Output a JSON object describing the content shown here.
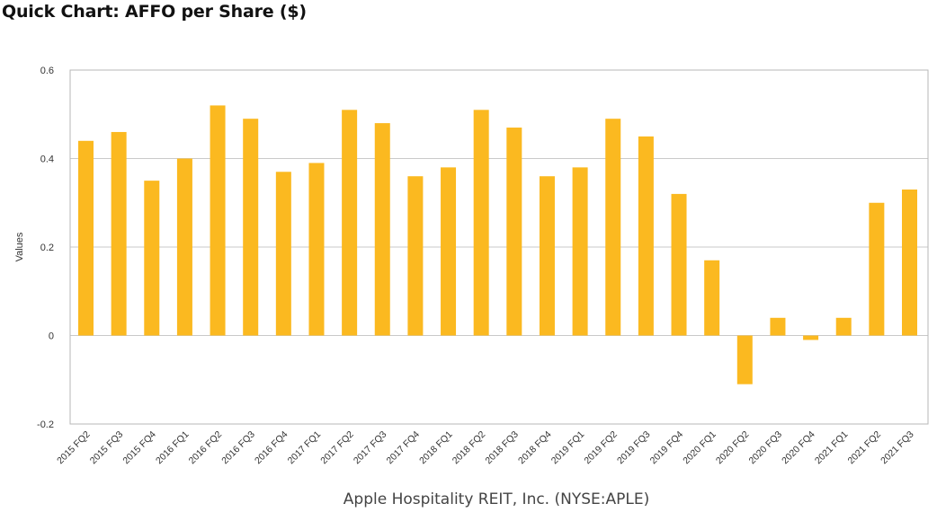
{
  "header": {
    "title": "Quick Chart: AFFO per Share ($)"
  },
  "caption": "Apple Hospitality REIT, Inc. (NYSE:APLE)",
  "chart_data": {
    "type": "bar",
    "title": "Quick Chart: AFFO per Share ($)",
    "xlabel": "Apple Hospitality REIT, Inc. (NYSE:APLE)",
    "ylabel": "Values",
    "ylim": [
      -0.2,
      0.6
    ],
    "yticks": [
      -0.2,
      0,
      0.2,
      0.4,
      0.6
    ],
    "ytick_labels": [
      "-0.2",
      "0",
      "0.2",
      "0.4",
      "0.6"
    ],
    "grid": true,
    "bar_color": "#FBB920",
    "categories": [
      "2015 FQ2",
      "2015 FQ3",
      "2015 FQ4",
      "2016 FQ1",
      "2016 FQ2",
      "2016 FQ3",
      "2016 FQ4",
      "2017 FQ1",
      "2017 FQ2",
      "2017 FQ3",
      "2017 FQ4",
      "2018 FQ1",
      "2018 FQ2",
      "2018 FQ3",
      "2018 FQ4",
      "2019 FQ1",
      "2019 FQ2",
      "2019 FQ3",
      "2019 FQ4",
      "2020 FQ1",
      "2020 FQ2",
      "2020 FQ3",
      "2020 FQ4",
      "2021 FQ1",
      "2021 FQ2",
      "2021 FQ3"
    ],
    "values": [
      0.44,
      0.46,
      0.35,
      0.4,
      0.52,
      0.49,
      0.37,
      0.39,
      0.51,
      0.48,
      0.36,
      0.38,
      0.51,
      0.47,
      0.36,
      0.38,
      0.49,
      0.45,
      0.32,
      0.17,
      -0.11,
      0.04,
      -0.01,
      0.04,
      0.3,
      0.33
    ]
  }
}
